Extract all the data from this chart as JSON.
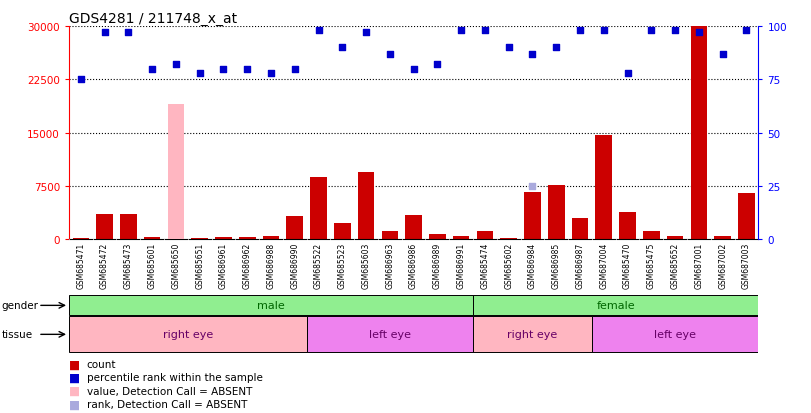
{
  "title": "GDS4281 / 211748_x_at",
  "samples": [
    "GSM685471",
    "GSM685472",
    "GSM685473",
    "GSM685601",
    "GSM685650",
    "GSM685651",
    "GSM686961",
    "GSM686962",
    "GSM686988",
    "GSM686990",
    "GSM685522",
    "GSM685523",
    "GSM685603",
    "GSM686963",
    "GSM686986",
    "GSM686989",
    "GSM686991",
    "GSM685474",
    "GSM685602",
    "GSM686984",
    "GSM686985",
    "GSM686987",
    "GSM687004",
    "GSM685470",
    "GSM685475",
    "GSM685652",
    "GSM687001",
    "GSM687002",
    "GSM687003"
  ],
  "count_values": [
    120,
    3500,
    3600,
    350,
    400,
    200,
    300,
    350,
    400,
    3200,
    8800,
    2200,
    9500,
    1200,
    3400,
    680,
    500,
    1100,
    200,
    6600,
    7600,
    3000,
    14700,
    3800,
    1100,
    500,
    30000,
    400,
    6500
  ],
  "percentile_values": [
    75,
    97,
    97,
    80,
    82,
    78,
    80,
    80,
    78,
    80,
    98,
    90,
    97,
    87,
    80,
    82,
    98,
    98,
    90,
    87,
    90,
    98,
    98,
    78,
    98,
    98,
    97,
    87,
    98
  ],
  "absent_count_indices": [
    4
  ],
  "absent_count_values": [
    19000
  ],
  "absent_rank_indices": [
    19
  ],
  "absent_rank_values": [
    25
  ],
  "gender_groups": [
    {
      "label": "male",
      "start": 0,
      "end": 16,
      "color": "#90EE90"
    },
    {
      "label": "female",
      "start": 17,
      "end": 28,
      "color": "#90EE90"
    }
  ],
  "tissue_groups": [
    {
      "label": "right eye",
      "start": 0,
      "end": 9,
      "color": "#FFB6C1"
    },
    {
      "label": "left eye",
      "start": 10,
      "end": 16,
      "color": "#EE82EE"
    },
    {
      "label": "right eye",
      "start": 17,
      "end": 21,
      "color": "#FFB6C1"
    },
    {
      "label": "left eye",
      "start": 22,
      "end": 28,
      "color": "#EE82EE"
    }
  ],
  "bar_color": "#CC0000",
  "dot_color": "#0000CC",
  "absent_count_color": "#FFB6C1",
  "absent_rank_color": "#AAAADD",
  "ylim_left": [
    0,
    30000
  ],
  "ylim_right": [
    0,
    100
  ],
  "yticks_left": [
    0,
    7500,
    15000,
    22500,
    30000
  ],
  "yticks_right": [
    0,
    25,
    50,
    75,
    100
  ],
  "background_color": "#ffffff",
  "grid_color": "#000000",
  "label_color_gender": "#006600",
  "label_color_tissue": "#660066"
}
